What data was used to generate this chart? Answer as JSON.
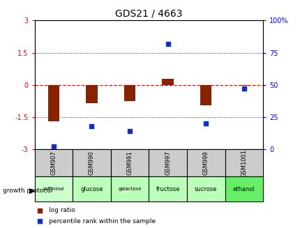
{
  "title": "GDS21 / 4663",
  "samples": [
    "GSM907",
    "GSM990",
    "GSM991",
    "GSM997",
    "GSM999",
    "GSM1001"
  ],
  "protocols": [
    "raffinose",
    "glucose",
    "galactose",
    "fructose",
    "sucrose",
    "ethanol"
  ],
  "log_ratios": [
    -1.7,
    -0.85,
    -0.75,
    0.3,
    -0.95,
    -0.05
  ],
  "percentile_ranks": [
    2,
    18,
    14,
    82,
    20,
    47
  ],
  "ylim_left": [
    -3,
    3
  ],
  "ylim_right": [
    0,
    100
  ],
  "yticks_left": [
    -3,
    -1.5,
    0,
    1.5,
    3
  ],
  "yticks_right": [
    0,
    25,
    50,
    75,
    100
  ],
  "hlines_dotted": [
    -1.5,
    1.5
  ],
  "bar_color": "#882200",
  "dot_color": "#1133bb",
  "zero_line_color": "#cc2222",
  "hline_color": "#222222",
  "protocol_colors": [
    "#ccffcc",
    "#bbffbb",
    "#bbffbb",
    "#bbffbb",
    "#bbffbb",
    "#66ee66"
  ],
  "header_bg": "#cccccc",
  "legend_log_color": "#882200",
  "legend_pct_color": "#1133bb",
  "title_fontsize": 10,
  "tick_fontsize": 7,
  "bar_width": 0.3
}
